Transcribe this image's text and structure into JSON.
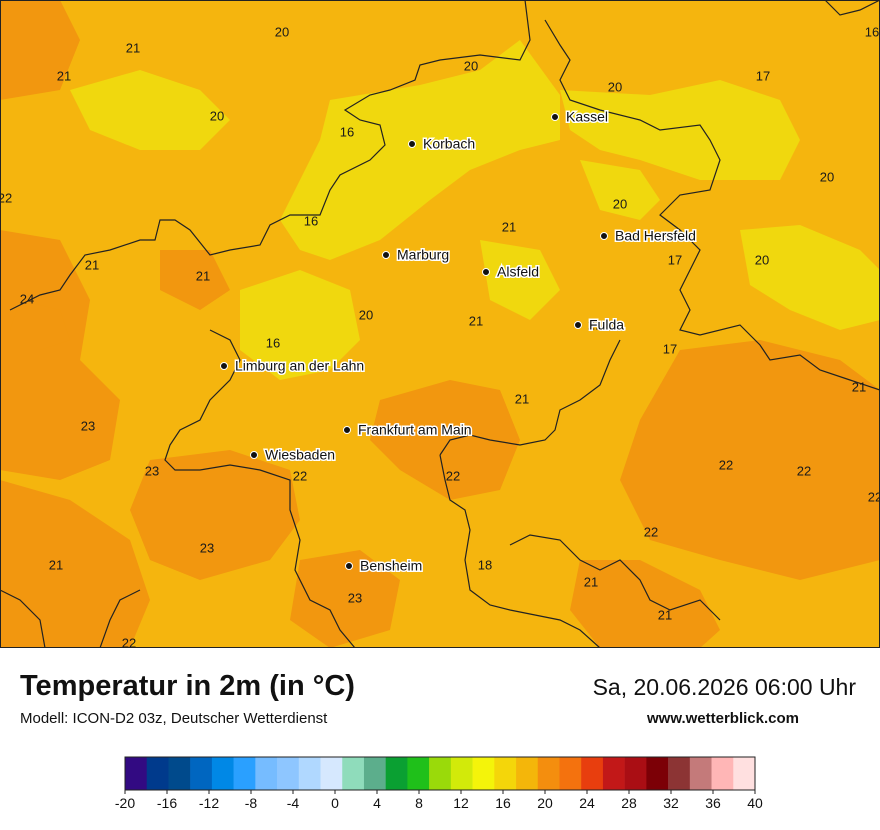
{
  "map": {
    "temperature_labels": [
      {
        "text": "20"
      },
      {
        "text": "21"
      },
      {
        "text": "21"
      },
      {
        "text": "20"
      },
      {
        "text": "20"
      },
      {
        "text": "20"
      },
      {
        "text": "17"
      },
      {
        "text": "16"
      },
      {
        "text": "16"
      },
      {
        "text": "20"
      },
      {
        "text": "22"
      },
      {
        "text": "16"
      },
      {
        "text": "21"
      },
      {
        "text": "20"
      },
      {
        "text": "21"
      },
      {
        "text": "21"
      },
      {
        "text": "17"
      },
      {
        "text": "20"
      },
      {
        "text": "24"
      },
      {
        "text": "20"
      },
      {
        "text": "21"
      },
      {
        "text": "21"
      },
      {
        "text": "16"
      },
      {
        "text": "17"
      },
      {
        "text": "21"
      },
      {
        "text": "21"
      },
      {
        "text": "23"
      },
      {
        "text": "23"
      },
      {
        "text": "22"
      },
      {
        "text": "22"
      },
      {
        "text": "22"
      },
      {
        "text": "22"
      },
      {
        "text": "22"
      },
      {
        "text": "23"
      },
      {
        "text": "22"
      },
      {
        "text": "18"
      },
      {
        "text": "21"
      },
      {
        "text": "23"
      },
      {
        "text": "21"
      },
      {
        "text": "21"
      },
      {
        "text": "22"
      }
    ],
    "cities": [
      {
        "name": "Kassel"
      },
      {
        "name": "Korbach"
      },
      {
        "name": "Bad Hersfeld"
      },
      {
        "name": "Marburg"
      },
      {
        "name": "Alsfeld"
      },
      {
        "name": "Fulda"
      },
      {
        "name": "Limburg an der Lahn"
      },
      {
        "name": "Frankfurt am Main"
      },
      {
        "name": "Wiesbaden"
      },
      {
        "name": "Bensheim"
      }
    ],
    "colors": {
      "base": "#f5b50e",
      "warm": "#f2970f",
      "cool": "#f0d80e",
      "border": "#222222"
    }
  },
  "footer": {
    "title": "Temperatur in 2m (in °C)",
    "subtitle": "Modell: ICON-D2 03z, Deutscher Wetterdienst",
    "datetime": "Sa, 20.06.2026 06:00 Uhr",
    "website": "www.wetterblick.com"
  },
  "legend": {
    "colors": [
      "#320a82",
      "#003a8c",
      "#004a8c",
      "#0066c0",
      "#0088e6",
      "#2aa0ff",
      "#76bcff",
      "#8ec6ff",
      "#b0d8ff",
      "#d6e8fe",
      "#8fdcbb",
      "#5cae8c",
      "#0aa032",
      "#1fc01a",
      "#9ada0a",
      "#d2ea0a",
      "#f4f40a",
      "#f4d60a",
      "#f4b60a",
      "#f48e0e",
      "#f4720e",
      "#e83e0e",
      "#c21818",
      "#aa0e14",
      "#7c0006",
      "#8c3434",
      "#c47a7a",
      "#ffb6b6",
      "#ffe0e0"
    ],
    "ticks": [
      "-20",
      "-16",
      "-12",
      "-8",
      "-4",
      "0",
      "4",
      "8",
      "12",
      "16",
      "20",
      "24",
      "28",
      "32",
      "36",
      "40"
    ]
  }
}
